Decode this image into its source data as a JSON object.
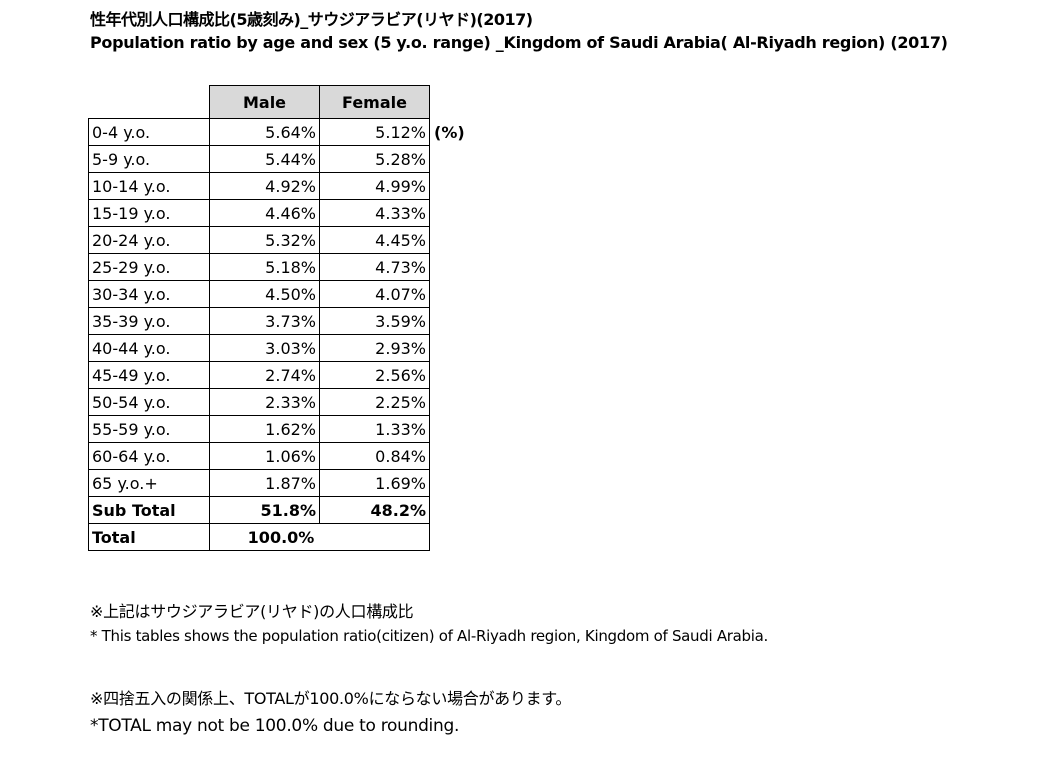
{
  "title_ja": "性年代別人口構成比(5歳刻み)_サウジアラビア(リヤド)(2017)",
  "title_en": "Population ratio by age and sex (5 y.o. range) _Kingdom of Saudi Arabia( Al-Riyadh region) (2017)",
  "table": {
    "headers": [
      "Male",
      "Female"
    ],
    "unit": "(%)",
    "rows": [
      {
        "age": "0-4 y.o.",
        "male": "5.64%",
        "female": "5.12%"
      },
      {
        "age": "5-9 y.o.",
        "male": "5.44%",
        "female": "5.28%"
      },
      {
        "age": "10-14 y.o.",
        "male": "4.92%",
        "female": "4.99%"
      },
      {
        "age": "15-19 y.o.",
        "male": "4.46%",
        "female": "4.33%"
      },
      {
        "age": "20-24 y.o.",
        "male": "5.32%",
        "female": "4.45%"
      },
      {
        "age": "25-29 y.o.",
        "male": "5.18%",
        "female": "4.73%"
      },
      {
        "age": "30-34 y.o.",
        "male": "4.50%",
        "female": "4.07%"
      },
      {
        "age": "35-39 y.o.",
        "male": "3.73%",
        "female": "3.59%"
      },
      {
        "age": "40-44 y.o.",
        "male": "3.03%",
        "female": "2.93%"
      },
      {
        "age": "45-49 y.o.",
        "male": "2.74%",
        "female": "2.56%"
      },
      {
        "age": "50-54 y.o.",
        "male": "2.33%",
        "female": "2.25%"
      },
      {
        "age": "55-59 y.o.",
        "male": "1.62%",
        "female": "1.33%"
      },
      {
        "age": "60-64 y.o.",
        "male": "1.06%",
        "female": "0.84%"
      },
      {
        "age": "65 y.o.+",
        "male": "1.87%",
        "female": "1.69%"
      }
    ],
    "subtotal": {
      "label": "Sub Total",
      "male": "51.8%",
      "female": "48.2%"
    },
    "total": {
      "label": "Total",
      "value": "100.0%"
    }
  },
  "notes": {
    "note1_ja": "※上記はサウジアラビア(リヤド)の人口構成比",
    "note1_en": "* This tables shows the population ratio(citizen) of  Al-Riyadh region, Kingdom of Saudi Arabia.",
    "note2_ja": "※四捨五入の関係上、TOTALが100.0%にならない場合があります。",
    "note2_en": "*TOTAL may not be 100.0% due to rounding."
  }
}
